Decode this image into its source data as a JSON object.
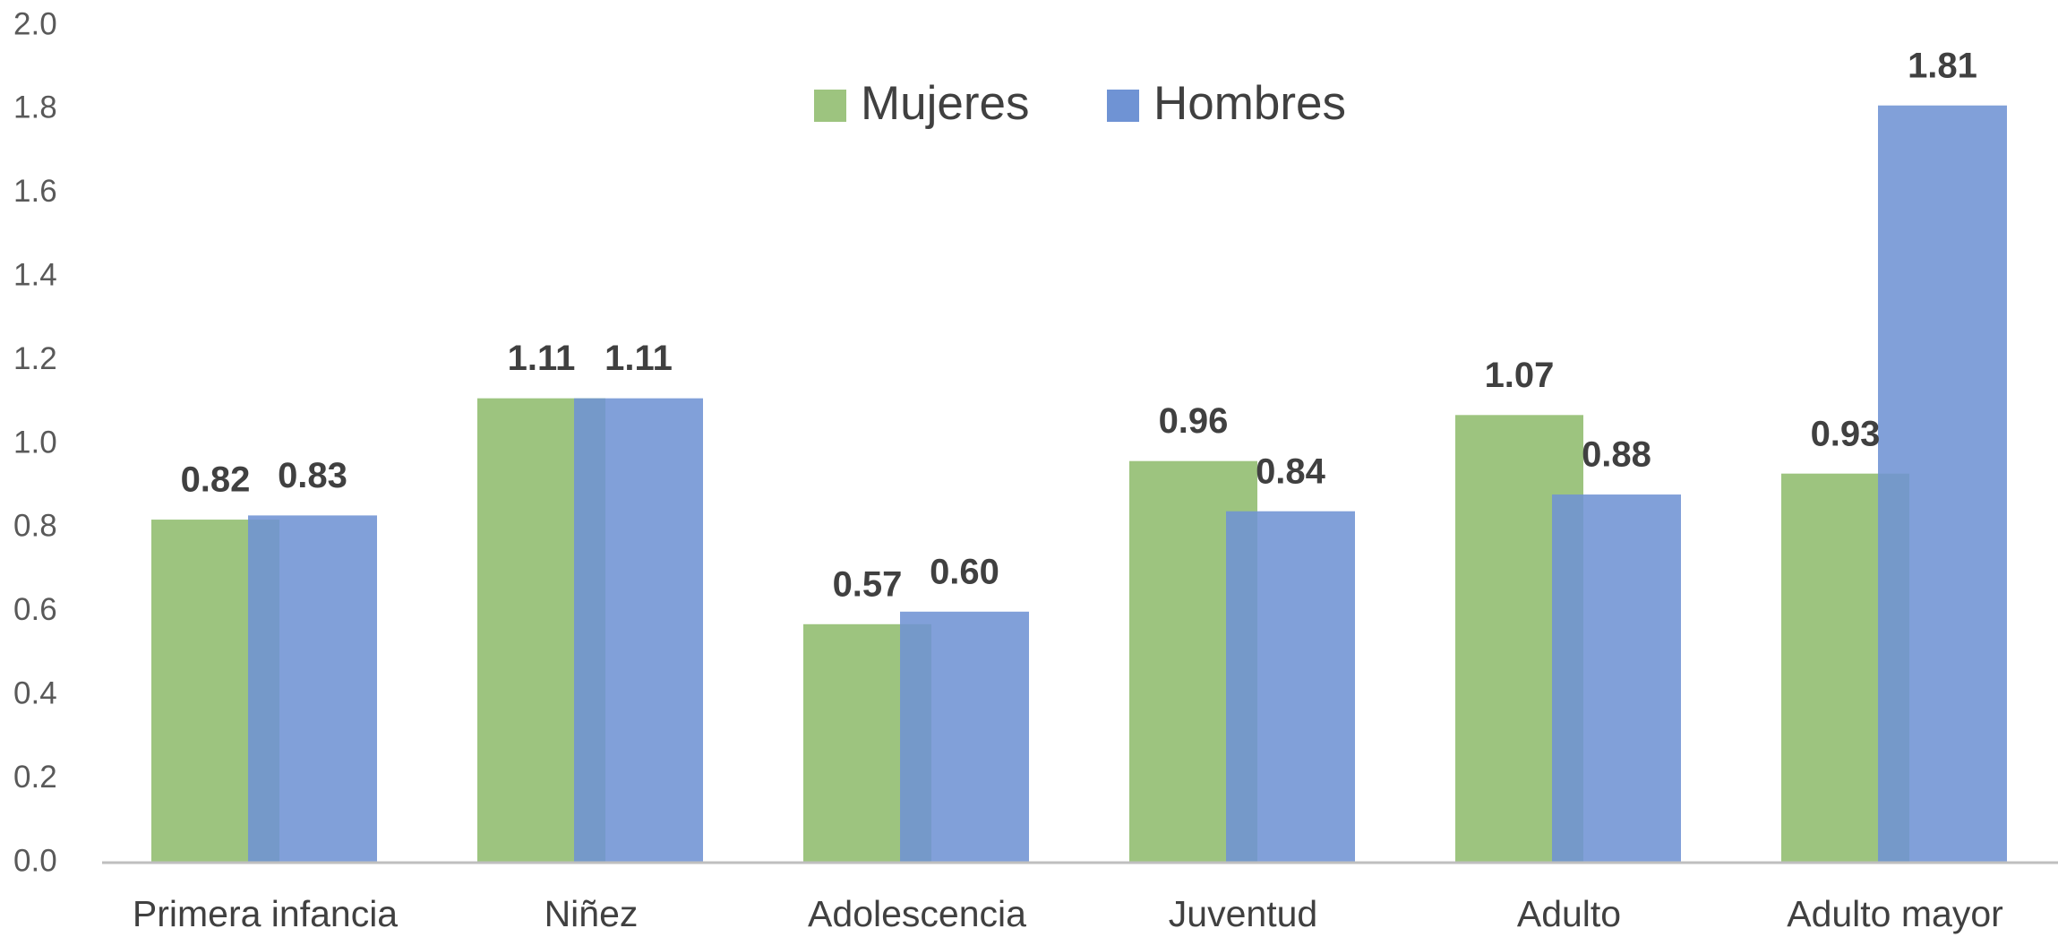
{
  "chart_data": {
    "type": "bar",
    "categories": [
      "Primera infancia",
      "Niñez",
      "Adolescencia",
      "Juventud",
      "Adulto",
      "Adulto mayor"
    ],
    "series": [
      {
        "name": "Mujeres",
        "color": "#9dc47f",
        "values": [
          0.82,
          1.11,
          0.57,
          0.96,
          1.07,
          0.93
        ],
        "value_labels": [
          "0.82",
          "1.11",
          "0.57",
          "0.96",
          "1.07",
          "0.93"
        ]
      },
      {
        "name": "Hombres",
        "color": "#6f93d4",
        "values": [
          0.83,
          1.11,
          0.6,
          0.84,
          0.88,
          1.81
        ],
        "value_labels": [
          "0.83",
          "1.11",
          "0.60",
          "0.84",
          "0.88",
          "1.81"
        ]
      }
    ],
    "ylim": [
      0,
      2
    ],
    "yticks": [
      {
        "value": 0,
        "label": "0.0"
      },
      0.2,
      0.4,
      0.6,
      0.8,
      {
        "value": 1,
        "label": "1.0"
      },
      1.2,
      1.4,
      1.6,
      1.8,
      {
        "value": 2,
        "label": "2.0"
      }
    ],
    "grid": false,
    "legend": "top"
  }
}
